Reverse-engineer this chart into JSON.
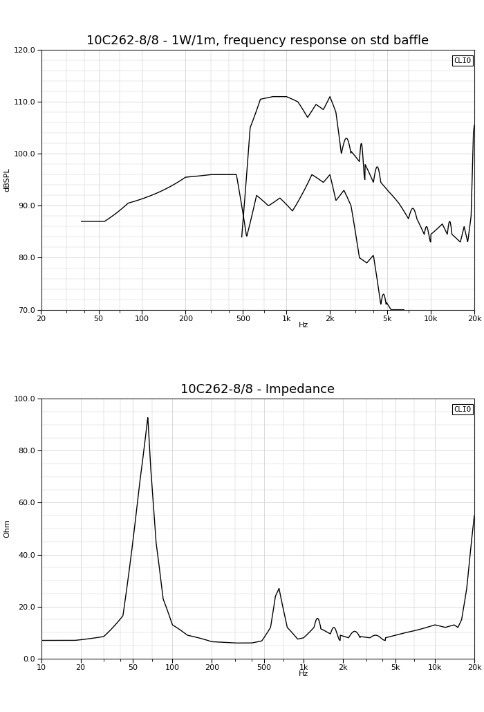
{
  "title1": "10C262-8/8 - 1W/1m, frequency response on std baffle",
  "title2": "10C262-8/8 - Impedance",
  "ylabel1": "dBSPL",
  "ylabel2": "Ohm",
  "xlabel_hz": "Hz",
  "clio_label": "CLIO",
  "freq_xlim": [
    20,
    20000
  ],
  "freq_ylim": [
    70.0,
    120.0
  ],
  "freq_yticks": [
    70.0,
    80.0,
    90.0,
    100.0,
    110.0,
    120.0
  ],
  "imp_xlim": [
    10,
    20000
  ],
  "imp_ylim": [
    0.0,
    100.0
  ],
  "imp_yticks": [
    0.0,
    20.0,
    40.0,
    60.0,
    80.0,
    100.0
  ],
  "background_color": "#ffffff",
  "grid_color": "#cccccc",
  "line_color": "#000000",
  "title_fontsize": 13,
  "label_fontsize": 8,
  "tick_fontsize": 8
}
